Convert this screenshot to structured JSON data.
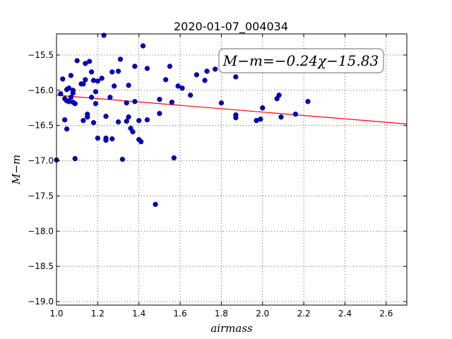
{
  "chart_data": {
    "type": "scatter",
    "title": "2020-01-07_004034",
    "xlabel": "airmass",
    "ylabel": "M−m",
    "xlim": [
      1.0,
      2.7
    ],
    "ylim": [
      -19.05,
      -15.2
    ],
    "y_inverted_display": true,
    "grid": true,
    "grid_style": "dotted",
    "x_ticks": [
      1.0,
      1.2,
      1.4,
      1.6,
      1.8,
      2.0,
      2.2,
      2.4,
      2.6
    ],
    "x_tick_labels": [
      "1.0",
      "1.2",
      "1.4",
      "1.6",
      "1.8",
      "2.0",
      "2.2",
      "2.4",
      "2.6"
    ],
    "y_ticks": [
      -15.5,
      -16.0,
      -16.5,
      -17.0,
      -17.5,
      -18.0,
      -18.5,
      -19.0
    ],
    "y_tick_labels": [
      "−15.5",
      "−16.0",
      "−16.5",
      "−17.0",
      "−17.5",
      "−18.0",
      "−18.5",
      "−19.0"
    ],
    "annotation": "M−m=−0.24χ−15.83",
    "fit_line": {
      "slope": -0.24,
      "intercept": -15.83,
      "color": "#ff0000"
    },
    "point_color": "#0000cc",
    "series": [
      {
        "points": [
          [
            1.0,
            -16.99
          ],
          [
            1.02,
            -16.05
          ],
          [
            1.03,
            -15.84
          ],
          [
            1.04,
            -16.12
          ],
          [
            1.04,
            -16.42
          ],
          [
            1.05,
            -16.15
          ],
          [
            1.05,
            -15.99
          ],
          [
            1.05,
            -16.55
          ],
          [
            1.06,
            -16.16
          ],
          [
            1.06,
            -15.97
          ],
          [
            1.07,
            -16.1
          ],
          [
            1.07,
            -15.79
          ],
          [
            1.08,
            -16.0
          ],
          [
            1.08,
            -16.17
          ],
          [
            1.08,
            -16.04
          ],
          [
            1.09,
            -16.19
          ],
          [
            1.09,
            -16.97
          ],
          [
            1.1,
            -15.58
          ],
          [
            1.12,
            -15.91
          ],
          [
            1.13,
            -16.43
          ],
          [
            1.13,
            -15.91
          ],
          [
            1.14,
            -15.62
          ],
          [
            1.14,
            -15.85
          ],
          [
            1.15,
            -16.38
          ],
          [
            1.15,
            -16.34
          ],
          [
            1.16,
            -15.59
          ],
          [
            1.17,
            -16.1
          ],
          [
            1.17,
            -15.74
          ],
          [
            1.18,
            -15.86
          ],
          [
            1.18,
            -16.46
          ],
          [
            1.19,
            -16.02
          ],
          [
            1.19,
            -16.19
          ],
          [
            1.2,
            -15.87
          ],
          [
            1.2,
            -16.68
          ],
          [
            1.22,
            -15.83
          ],
          [
            1.23,
            -15.22
          ],
          [
            1.24,
            -16.71
          ],
          [
            1.24,
            -16.68
          ],
          [
            1.24,
            -16.37
          ],
          [
            1.26,
            -16.1
          ],
          [
            1.27,
            -16.69
          ],
          [
            1.27,
            -15.74
          ],
          [
            1.28,
            -15.94
          ],
          [
            1.3,
            -15.73
          ],
          [
            1.3,
            -16.45
          ],
          [
            1.31,
            -15.56
          ],
          [
            1.32,
            -16.98
          ],
          [
            1.34,
            -16.44
          ],
          [
            1.34,
            -16.18
          ],
          [
            1.35,
            -15.93
          ],
          [
            1.35,
            -16.38
          ],
          [
            1.36,
            -16.54
          ],
          [
            1.37,
            -16.59
          ],
          [
            1.38,
            -16.16
          ],
          [
            1.38,
            -15.66
          ],
          [
            1.4,
            -16.7
          ],
          [
            1.4,
            -16.43
          ],
          [
            1.41,
            -16.73
          ],
          [
            1.42,
            -15.37
          ],
          [
            1.44,
            -16.42
          ],
          [
            1.44,
            -15.69
          ],
          [
            1.48,
            -17.62
          ],
          [
            1.5,
            -16.13
          ],
          [
            1.5,
            -16.33
          ],
          [
            1.53,
            -15.85
          ],
          [
            1.55,
            -15.66
          ],
          [
            1.56,
            -16.17
          ],
          [
            1.57,
            -16.96
          ],
          [
            1.59,
            -15.94
          ],
          [
            1.61,
            -15.97
          ],
          [
            1.65,
            -16.07
          ],
          [
            1.68,
            -15.78
          ],
          [
            1.72,
            -15.86
          ],
          [
            1.73,
            -15.73
          ],
          [
            1.77,
            -15.7
          ],
          [
            1.8,
            -16.18
          ],
          [
            1.87,
            -15.81
          ],
          [
            1.87,
            -16.35
          ],
          [
            1.87,
            -16.39
          ],
          [
            1.97,
            -16.43
          ],
          [
            1.99,
            -16.41
          ],
          [
            2.0,
            -16.25
          ],
          [
            2.07,
            -16.12
          ],
          [
            2.08,
            -16.07
          ],
          [
            2.09,
            -16.38
          ],
          [
            2.16,
            -16.34
          ],
          [
            2.22,
            -16.16
          ]
        ]
      }
    ]
  }
}
